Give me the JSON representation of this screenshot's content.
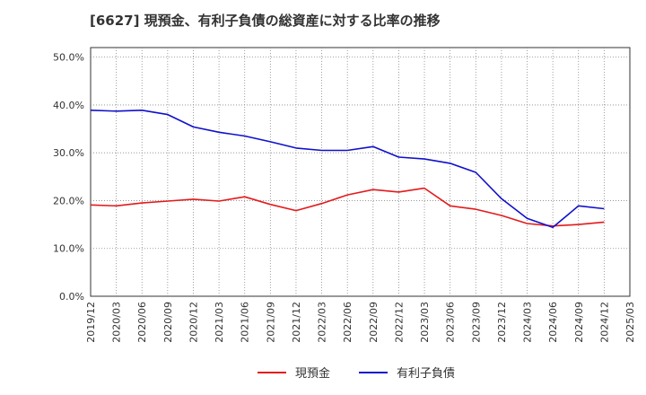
{
  "chart_data": {
    "type": "line",
    "title": "[6627]  現預金、有利子負債の総資産に対する比率の推移",
    "xlabel": "",
    "ylabel": "",
    "ylim": [
      0,
      52
    ],
    "yticks": [
      0,
      10,
      20,
      30,
      40,
      50
    ],
    "ytick_labels": [
      "0.0%",
      "10.0%",
      "20.0%",
      "30.0%",
      "40.0%",
      "50.0%"
    ],
    "categories": [
      "2019/12",
      "2020/03",
      "2020/06",
      "2020/09",
      "2020/12",
      "2021/03",
      "2021/06",
      "2021/09",
      "2021/12",
      "2022/03",
      "2022/06",
      "2022/09",
      "2022/12",
      "2023/03",
      "2023/06",
      "2023/09",
      "2023/12",
      "2024/03",
      "2024/06",
      "2024/09",
      "2024/12",
      "2025/03"
    ],
    "grid": true,
    "legend_position": "bottom-center",
    "series": [
      {
        "name": "現預金",
        "color": "#e31a1c",
        "values": [
          19.1,
          18.9,
          19.5,
          19.9,
          20.3,
          19.9,
          20.8,
          19.2,
          17.9,
          19.4,
          21.2,
          22.3,
          21.8,
          22.6,
          18.9,
          18.2,
          16.9,
          15.2,
          14.7,
          15.0,
          15.5,
          null
        ]
      },
      {
        "name": "有利子負債",
        "color": "#1010cc",
        "values": [
          38.9,
          38.7,
          38.9,
          38.0,
          35.4,
          34.3,
          33.5,
          32.3,
          31.0,
          30.5,
          30.5,
          31.3,
          29.1,
          28.7,
          27.8,
          25.9,
          20.4,
          16.3,
          14.4,
          18.9,
          18.3,
          null
        ]
      }
    ]
  }
}
